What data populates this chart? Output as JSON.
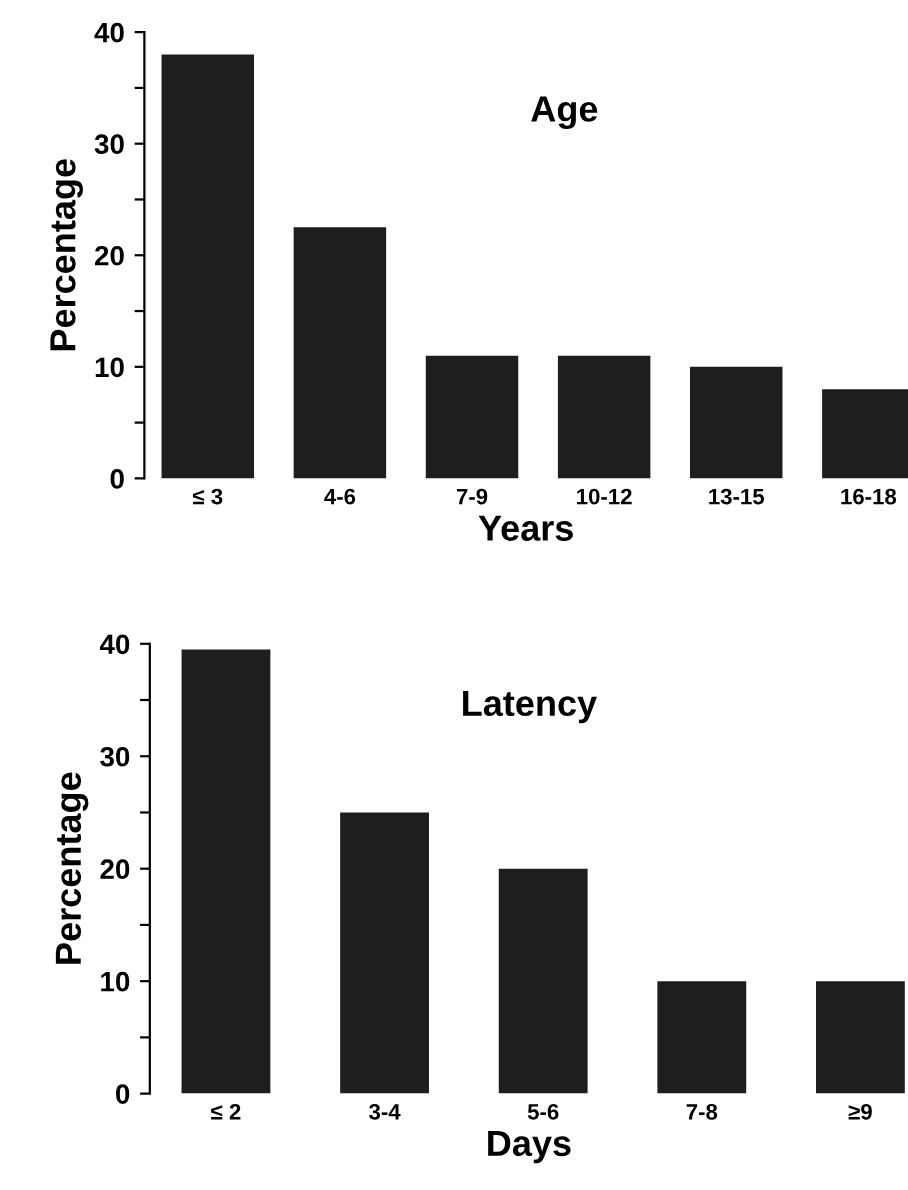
{
  "chart_data": [
    {
      "type": "bar",
      "title": "Age",
      "xlabel": "Years",
      "ylabel": "Percentage",
      "categories": [
        "≤ 3",
        "4-6",
        "7-9",
        "10-12",
        "13-15",
        "16-18"
      ],
      "values": [
        38,
        22.5,
        11,
        11,
        10,
        8
      ],
      "color": "#1e1e1e",
      "ylim": [
        0,
        40
      ],
      "yticks": [
        0,
        {
          "value": 5,
          "label": null
        },
        10,
        {
          "value": 15,
          "label": null
        },
        20,
        {
          "value": 25,
          "label": null
        },
        30,
        {
          "value": 35,
          "label": null
        },
        40
      ],
      "grid": false,
      "legend": false
    },
    {
      "type": "bar",
      "title": "Latency",
      "xlabel": "Days",
      "ylabel": "Percentage",
      "categories": [
        "≤ 2",
        "3-4",
        "5-6",
        "7-8",
        "≥9"
      ],
      "values": [
        39.5,
        25,
        20,
        10,
        10
      ],
      "color": "#1e1e1e",
      "ylim": [
        0,
        40
      ],
      "yticks": [
        0,
        {
          "value": 5,
          "label": null
        },
        10,
        {
          "value": 15,
          "label": null
        },
        20,
        {
          "value": 25,
          "label": null
        },
        30,
        {
          "value": 35,
          "label": null
        },
        40
      ],
      "grid": false,
      "legend": false
    }
  ]
}
